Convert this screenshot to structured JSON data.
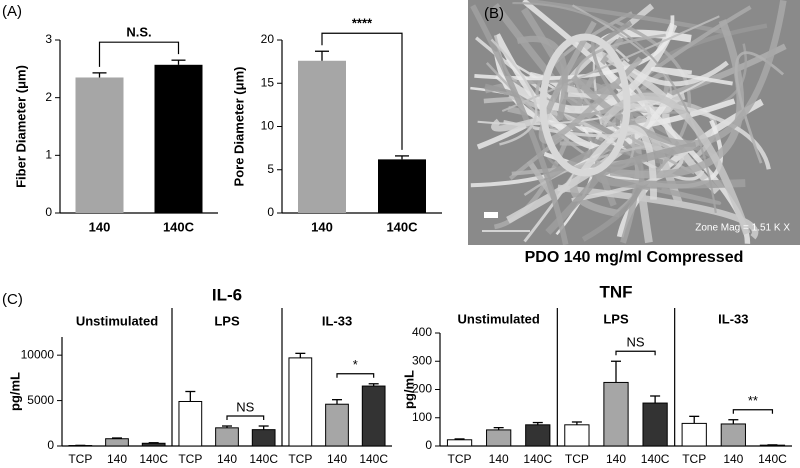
{
  "chart_data": [
    {
      "type": "bar",
      "panel_label": "(A)",
      "ylabel": "Fiber Diameter (μm)",
      "categories": [
        "140",
        "140C"
      ],
      "values": [
        2.35,
        2.57
      ],
      "errors": [
        0.08,
        0.08
      ],
      "colors": [
        "#a6a6a6",
        "#000000"
      ],
      "ylim": [
        0,
        3
      ],
      "yticks": [
        0,
        1,
        2,
        3
      ],
      "significance": "N.S."
    },
    {
      "type": "bar",
      "ylabel": "Pore Diameter (μm)",
      "categories": [
        "140",
        "140C"
      ],
      "values": [
        17.6,
        6.2
      ],
      "errors": [
        1.1,
        0.4
      ],
      "colors": [
        "#a6a6a6",
        "#000000"
      ],
      "ylim": [
        0,
        20
      ],
      "yticks": [
        0,
        5,
        10,
        15,
        20
      ],
      "significance": "****"
    },
    {
      "type": "bar",
      "panel_label": "(C)",
      "title": "IL-6",
      "ylabel": "pg/mL",
      "categories": [
        "Unstimulated",
        "LPS",
        "IL-33"
      ],
      "series": [
        {
          "name": "TCP",
          "color": "#ffffff",
          "values": [
            50,
            4900,
            9700
          ],
          "errors": [
            20,
            1100,
            500
          ]
        },
        {
          "name": "140",
          "color": "#a6a6a6",
          "values": [
            800,
            2000,
            4600
          ],
          "errors": [
            80,
            200,
            500
          ]
        },
        {
          "name": "140C",
          "color": "#333333",
          "values": [
            300,
            1800,
            6600
          ],
          "errors": [
            60,
            400,
            250
          ]
        }
      ],
      "ylim": [
        0,
        12000
      ],
      "yticks": [
        0,
        5000,
        10000
      ],
      "significance": [
        null,
        "NS",
        "*"
      ]
    },
    {
      "type": "bar",
      "title": "TNF",
      "ylabel": "pg/mL",
      "categories": [
        "Unstimulated",
        "LPS",
        "IL-33"
      ],
      "series": [
        {
          "name": "TCP",
          "color": "#ffffff",
          "values": [
            22,
            75,
            80
          ],
          "errors": [
            3,
            10,
            25
          ]
        },
        {
          "name": "140",
          "color": "#a6a6a6",
          "values": [
            57,
            225,
            78
          ],
          "errors": [
            8,
            75,
            15
          ]
        },
        {
          "name": "140C",
          "color": "#333333",
          "values": [
            75,
            152,
            3
          ],
          "errors": [
            8,
            25,
            1
          ]
        }
      ],
      "ylim": [
        0,
        400
      ],
      "yticks": [
        0,
        100,
        200,
        300,
        400
      ],
      "significance": [
        null,
        "NS",
        "**"
      ]
    }
  ],
  "image": {
    "label": "(B)",
    "scale_text": "Zone Mag = 1.51 K X",
    "caption": "PDO 140 mg/ml Compressed"
  }
}
